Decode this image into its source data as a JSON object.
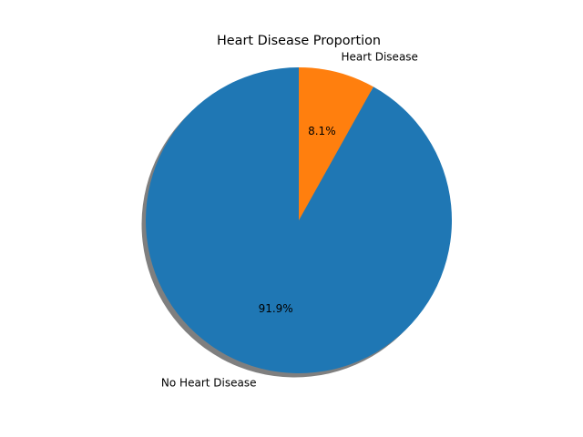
{
  "chart_data": {
    "type": "pie",
    "title": "Heart Disease Proportion",
    "shadow": true,
    "start_angle_deg": 90,
    "direction": "counterclockwise",
    "slices": [
      {
        "label": "No Heart Disease",
        "value": 91.9,
        "pct_label": "91.9%",
        "color": "#1f77b4"
      },
      {
        "label": "Heart Disease",
        "value": 8.1,
        "pct_label": "8.1%",
        "color": "#ff7f0e"
      }
    ],
    "shadow_color": "#000000"
  }
}
